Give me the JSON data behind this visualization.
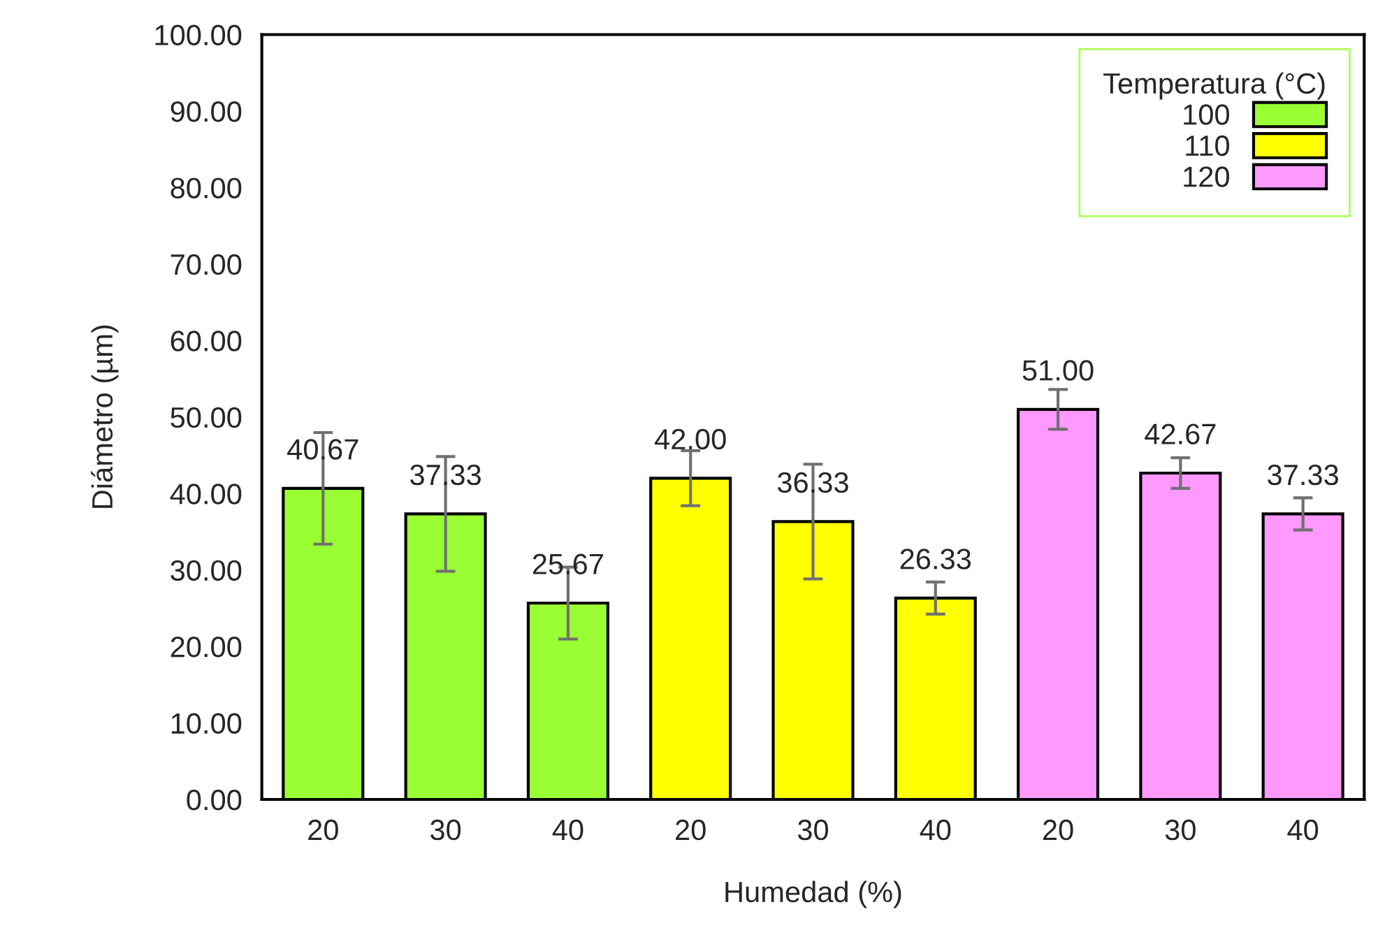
{
  "chart_data": {
    "type": "bar",
    "xlabel": "Humedad (%)",
    "ylabel": "Diámetro (µm)",
    "legend_title": "Temperatura (°C)",
    "categories": [
      "20",
      "30",
      "40",
      "20",
      "30",
      "40",
      "20",
      "30",
      "40"
    ],
    "series": [
      {
        "name": "100",
        "color": "#99ff33",
        "values": [
          40.67,
          37.33,
          25.67,
          null,
          null,
          null,
          null,
          null,
          null
        ],
        "value_labels": [
          "40.67",
          "37.33",
          "25.67",
          null,
          null,
          null,
          null,
          null,
          null
        ],
        "errors": [
          7.3,
          7.5,
          4.7,
          null,
          null,
          null,
          null,
          null,
          null
        ]
      },
      {
        "name": "110",
        "color": "#ffff00",
        "values": [
          null,
          null,
          null,
          42.0,
          36.33,
          26.33,
          null,
          null,
          null
        ],
        "value_labels": [
          null,
          null,
          null,
          "42.00",
          "36.33",
          "26.33",
          null,
          null,
          null
        ],
        "errors": [
          null,
          null,
          null,
          3.6,
          7.5,
          2.1,
          null,
          null,
          null
        ]
      },
      {
        "name": "120",
        "color": "#ff99ff",
        "values": [
          null,
          null,
          null,
          null,
          null,
          null,
          51.0,
          42.67,
          37.33
        ],
        "value_labels": [
          null,
          null,
          null,
          null,
          null,
          null,
          "51.00",
          "42.67",
          "37.33"
        ],
        "errors": [
          null,
          null,
          null,
          null,
          null,
          null,
          2.6,
          2.0,
          2.1
        ]
      }
    ],
    "ylim": [
      0,
      100
    ],
    "yticks": [
      {
        "value": 0,
        "label": "0.00"
      },
      {
        "value": 10,
        "label": "10.00"
      },
      {
        "value": 20,
        "label": "20.00"
      },
      {
        "value": 30,
        "label": "30.00"
      },
      {
        "value": 40,
        "label": "40.00"
      },
      {
        "value": 50,
        "label": "50.00"
      },
      {
        "value": 60,
        "label": "60.00"
      },
      {
        "value": 70,
        "label": "70.00"
      },
      {
        "value": 80,
        "label": "80.00"
      },
      {
        "value": 90,
        "label": "90.00"
      },
      {
        "value": 100,
        "label": "100.00"
      }
    ],
    "data_labels": true,
    "grid": false,
    "legend": "top right"
  }
}
